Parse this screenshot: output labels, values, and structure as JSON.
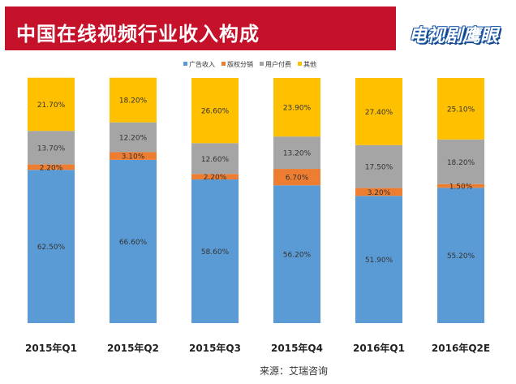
{
  "header": {
    "title": "中国在线视频行业收入构成",
    "logo_text": "电视剧鹰眼"
  },
  "footer": {
    "source": "来源：艾瑞咨询"
  },
  "colors": {
    "title_bg": "#c5112a",
    "ad": "#5b9bd5",
    "copyright": "#ed7d31",
    "user_pay": "#a5a5a5",
    "other": "#ffc000"
  },
  "chart_data": {
    "type": "bar",
    "stacked": true,
    "title": "中国在线视频行业收入构成",
    "legend_position": "top",
    "categories": [
      "2015年Q1",
      "2015年Q2",
      "2015年Q3",
      "2015年Q4",
      "2016年Q1",
      "2016年Q2E"
    ],
    "ylim": [
      0,
      100
    ],
    "series": [
      {
        "name": "广告收入",
        "color": "#5b9bd5",
        "values": [
          62.5,
          66.6,
          58.6,
          56.2,
          51.9,
          55.2
        ],
        "labels": [
          "62.50%",
          "66.60%",
          "58.60%",
          "56.20%",
          "51.90%",
          "55.20%"
        ]
      },
      {
        "name": "版权分销",
        "color": "#ed7d31",
        "values": [
          2.2,
          3.1,
          2.2,
          6.7,
          3.2,
          1.5
        ],
        "labels": [
          "2.20%",
          "3.10%",
          "2.20%",
          "6.70%",
          "3.20%",
          "1.50%"
        ]
      },
      {
        "name": "用户付费",
        "color": "#a5a5a5",
        "values": [
          13.7,
          12.2,
          12.6,
          13.2,
          17.5,
          18.2
        ],
        "labels": [
          "13.70%",
          "12.20%",
          "12.60%",
          "13.20%",
          "17.50%",
          "18.20%"
        ]
      },
      {
        "name": "其他",
        "color": "#ffc000",
        "values": [
          21.7,
          18.2,
          26.6,
          23.9,
          27.4,
          25.1
        ],
        "labels": [
          "21.70%",
          "18.20%",
          "26.60%",
          "23.90%",
          "27.40%",
          "25.10%"
        ]
      }
    ]
  }
}
